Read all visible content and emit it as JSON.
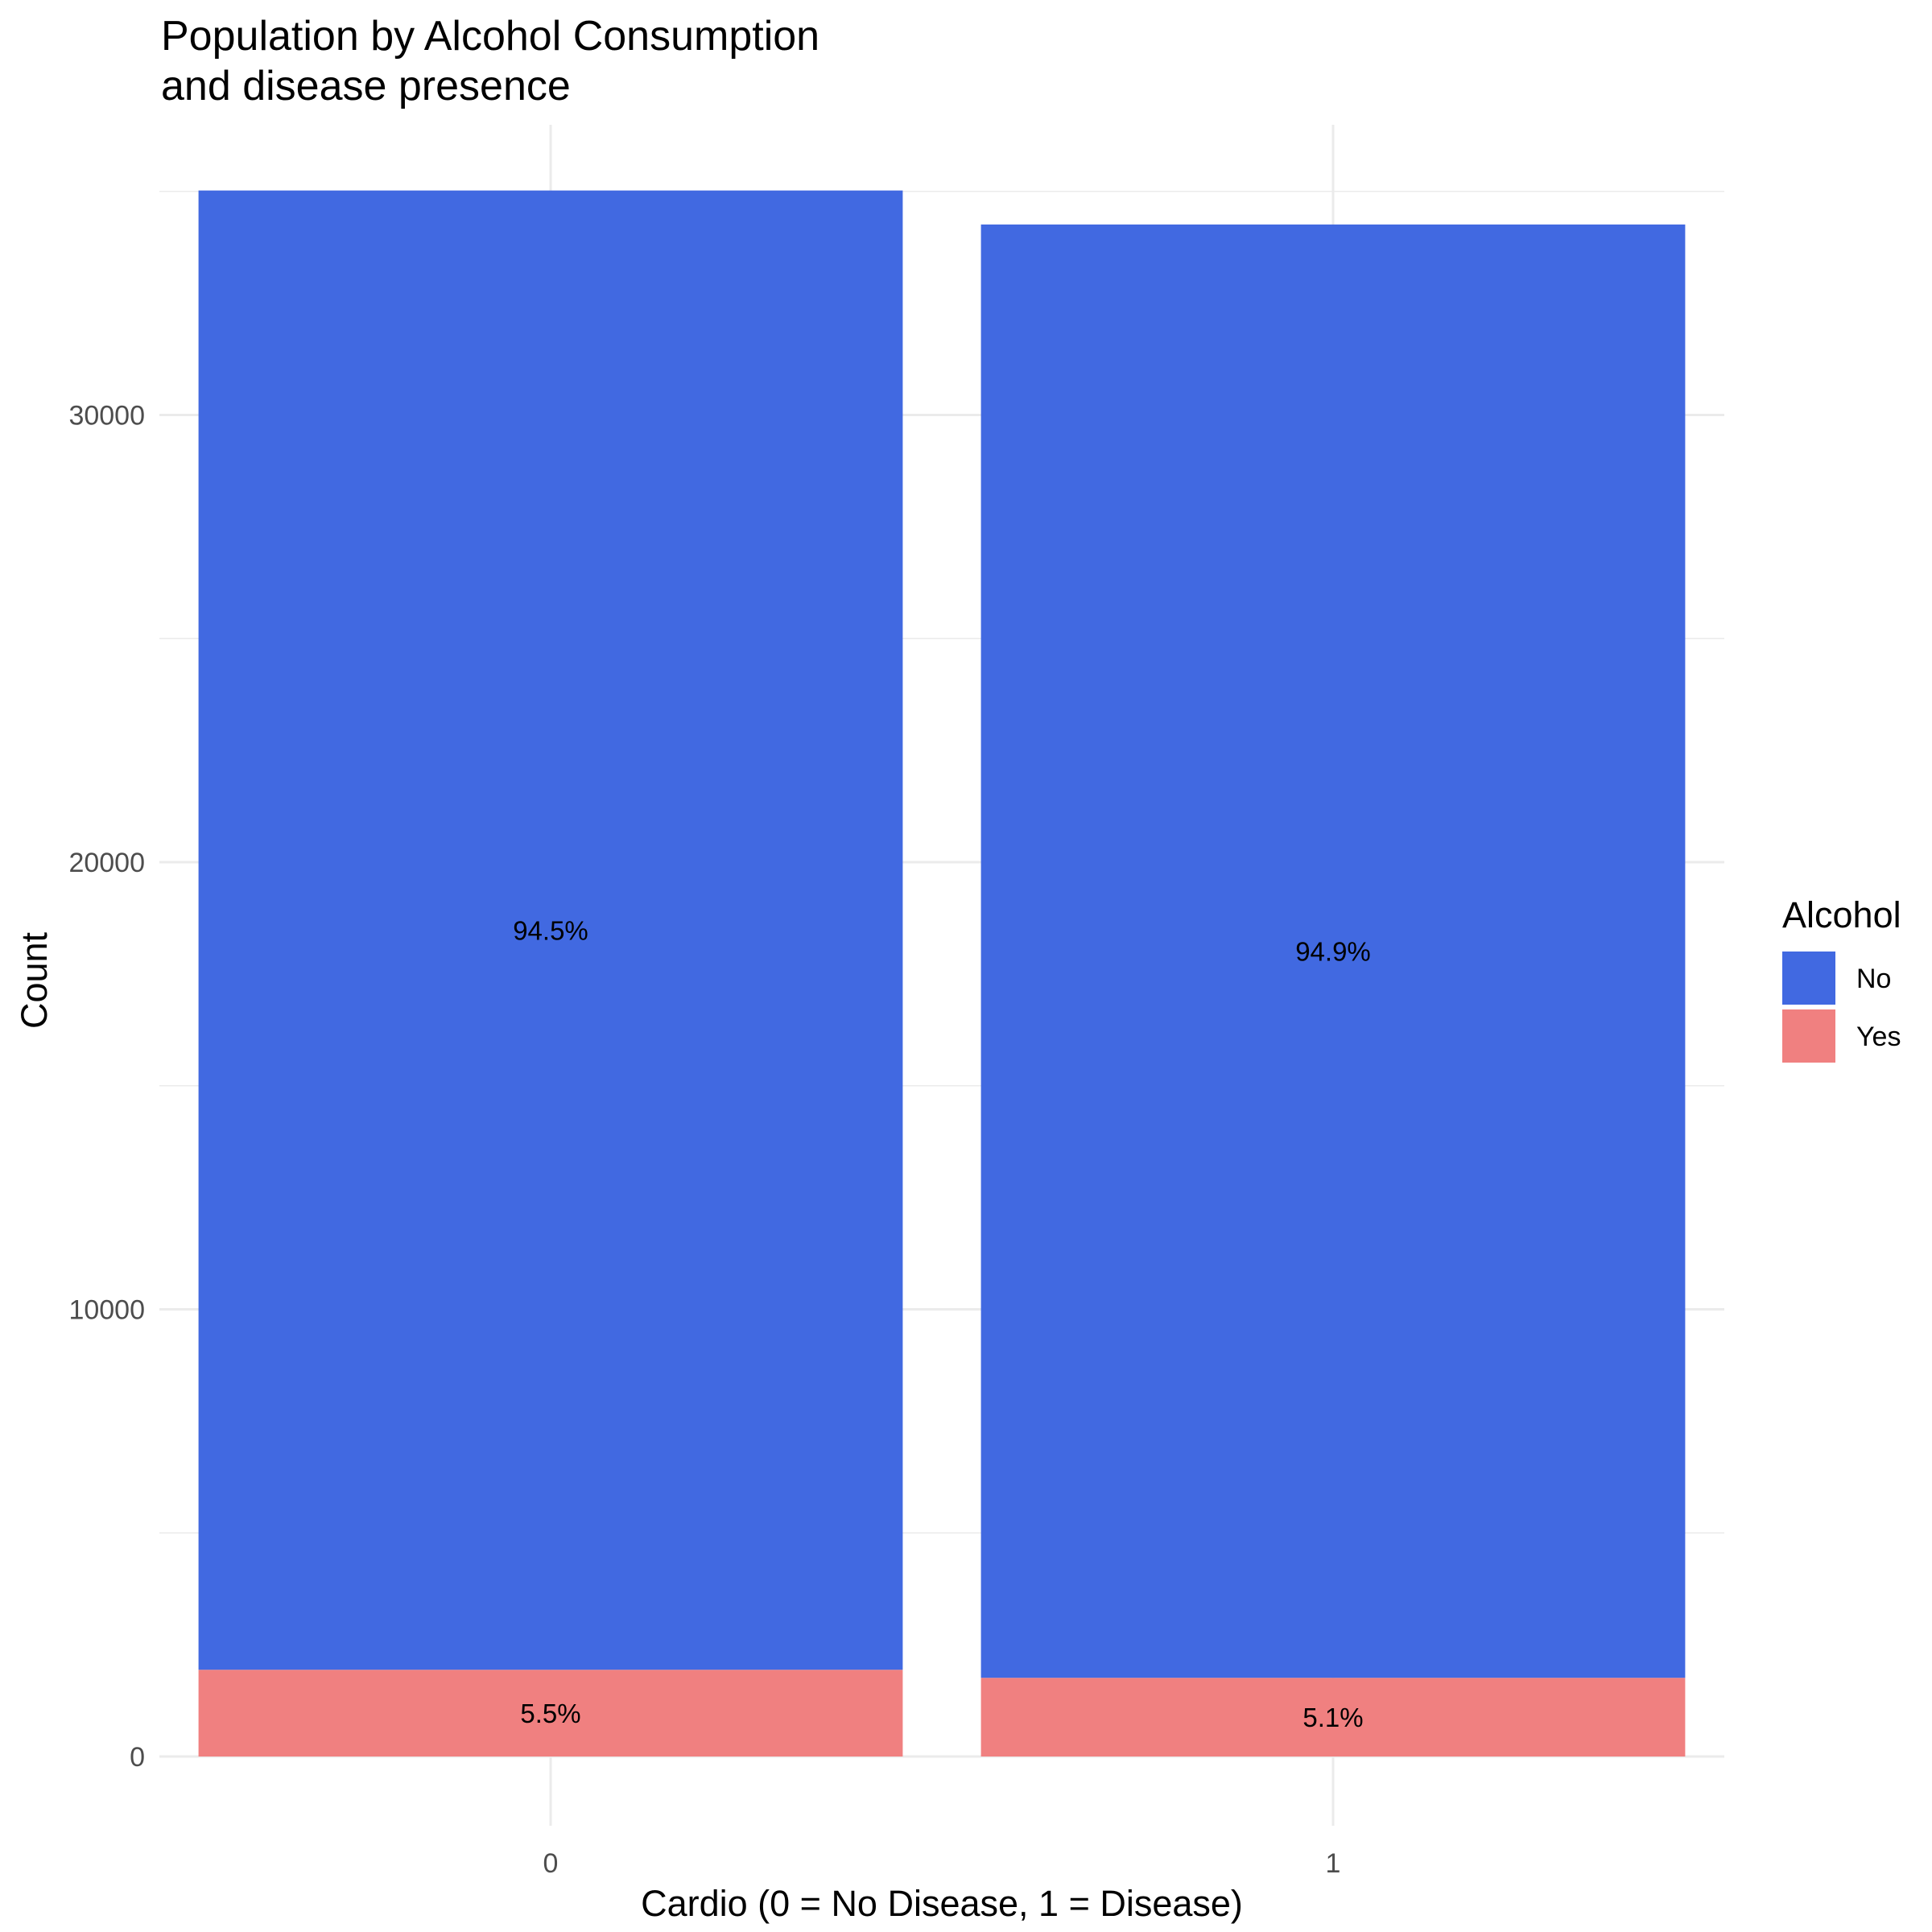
{
  "chart_data": {
    "type": "bar",
    "stacked": true,
    "title": "Population by Alcohol Consumption\nand disease presence",
    "xlabel": "Cardio (0 = No Disease, 1 = Disease)",
    "ylabel": "Count",
    "categories": [
      "0",
      "1"
    ],
    "ylim": [
      0,
      35000
    ],
    "yticks": [
      0,
      10000,
      20000,
      30000
    ],
    "grid": true,
    "legend": {
      "title": "Alcohol",
      "position": "right"
    },
    "series": [
      {
        "name": "No",
        "color": "#4169E1",
        "values": [
          33080,
          32500
        ],
        "labels": [
          "94.5%",
          "94.9%"
        ]
      },
      {
        "name": "Yes",
        "color": "#F08080",
        "values": [
          1940,
          1760
        ],
        "labels": [
          "5.5%",
          "5.1%"
        ]
      }
    ]
  }
}
